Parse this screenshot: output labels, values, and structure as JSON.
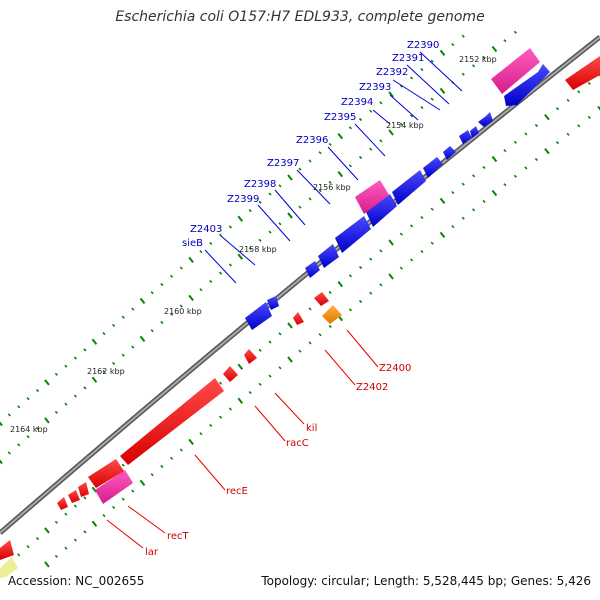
{
  "title": "Escherichia coli O157:H7 EDL933, complete genome",
  "footer": {
    "accession_label": "Accession:",
    "accession": "NC_002655",
    "topology_label": "Topology:",
    "topology": "circular",
    "length_label": "Length:",
    "length": "5,528,445 bp",
    "genes_label": "Genes:",
    "genes": "5,426"
  },
  "colors": {
    "backbone": "#808080",
    "forward_gene": "#0000dd",
    "reverse_gene": "#ee0000",
    "highlight_gene": "#ee2299",
    "other_gene": "#ff8800",
    "faded_gene": "#eeee99",
    "tick": "#008800",
    "forward_label": "#0000bb",
    "reverse_label": "#cc0000"
  },
  "scale_labels": [
    "2152 kbp",
    "2154 kbp",
    "2156 kbp",
    "2158 kbp",
    "2160 kbp",
    "2162 kbp",
    "2164 kbp"
  ],
  "forward_genes": [
    "Z2390",
    "Z2391",
    "Z2392",
    "Z2393",
    "Z2394",
    "Z2395",
    "Z2396",
    "Z2397",
    "Z2398",
    "Z2399",
    "Z2403",
    "sieB"
  ],
  "reverse_genes": [
    "Z2400",
    "Z2402",
    "kil",
    "racC",
    "recE",
    "recT",
    "lar"
  ]
}
